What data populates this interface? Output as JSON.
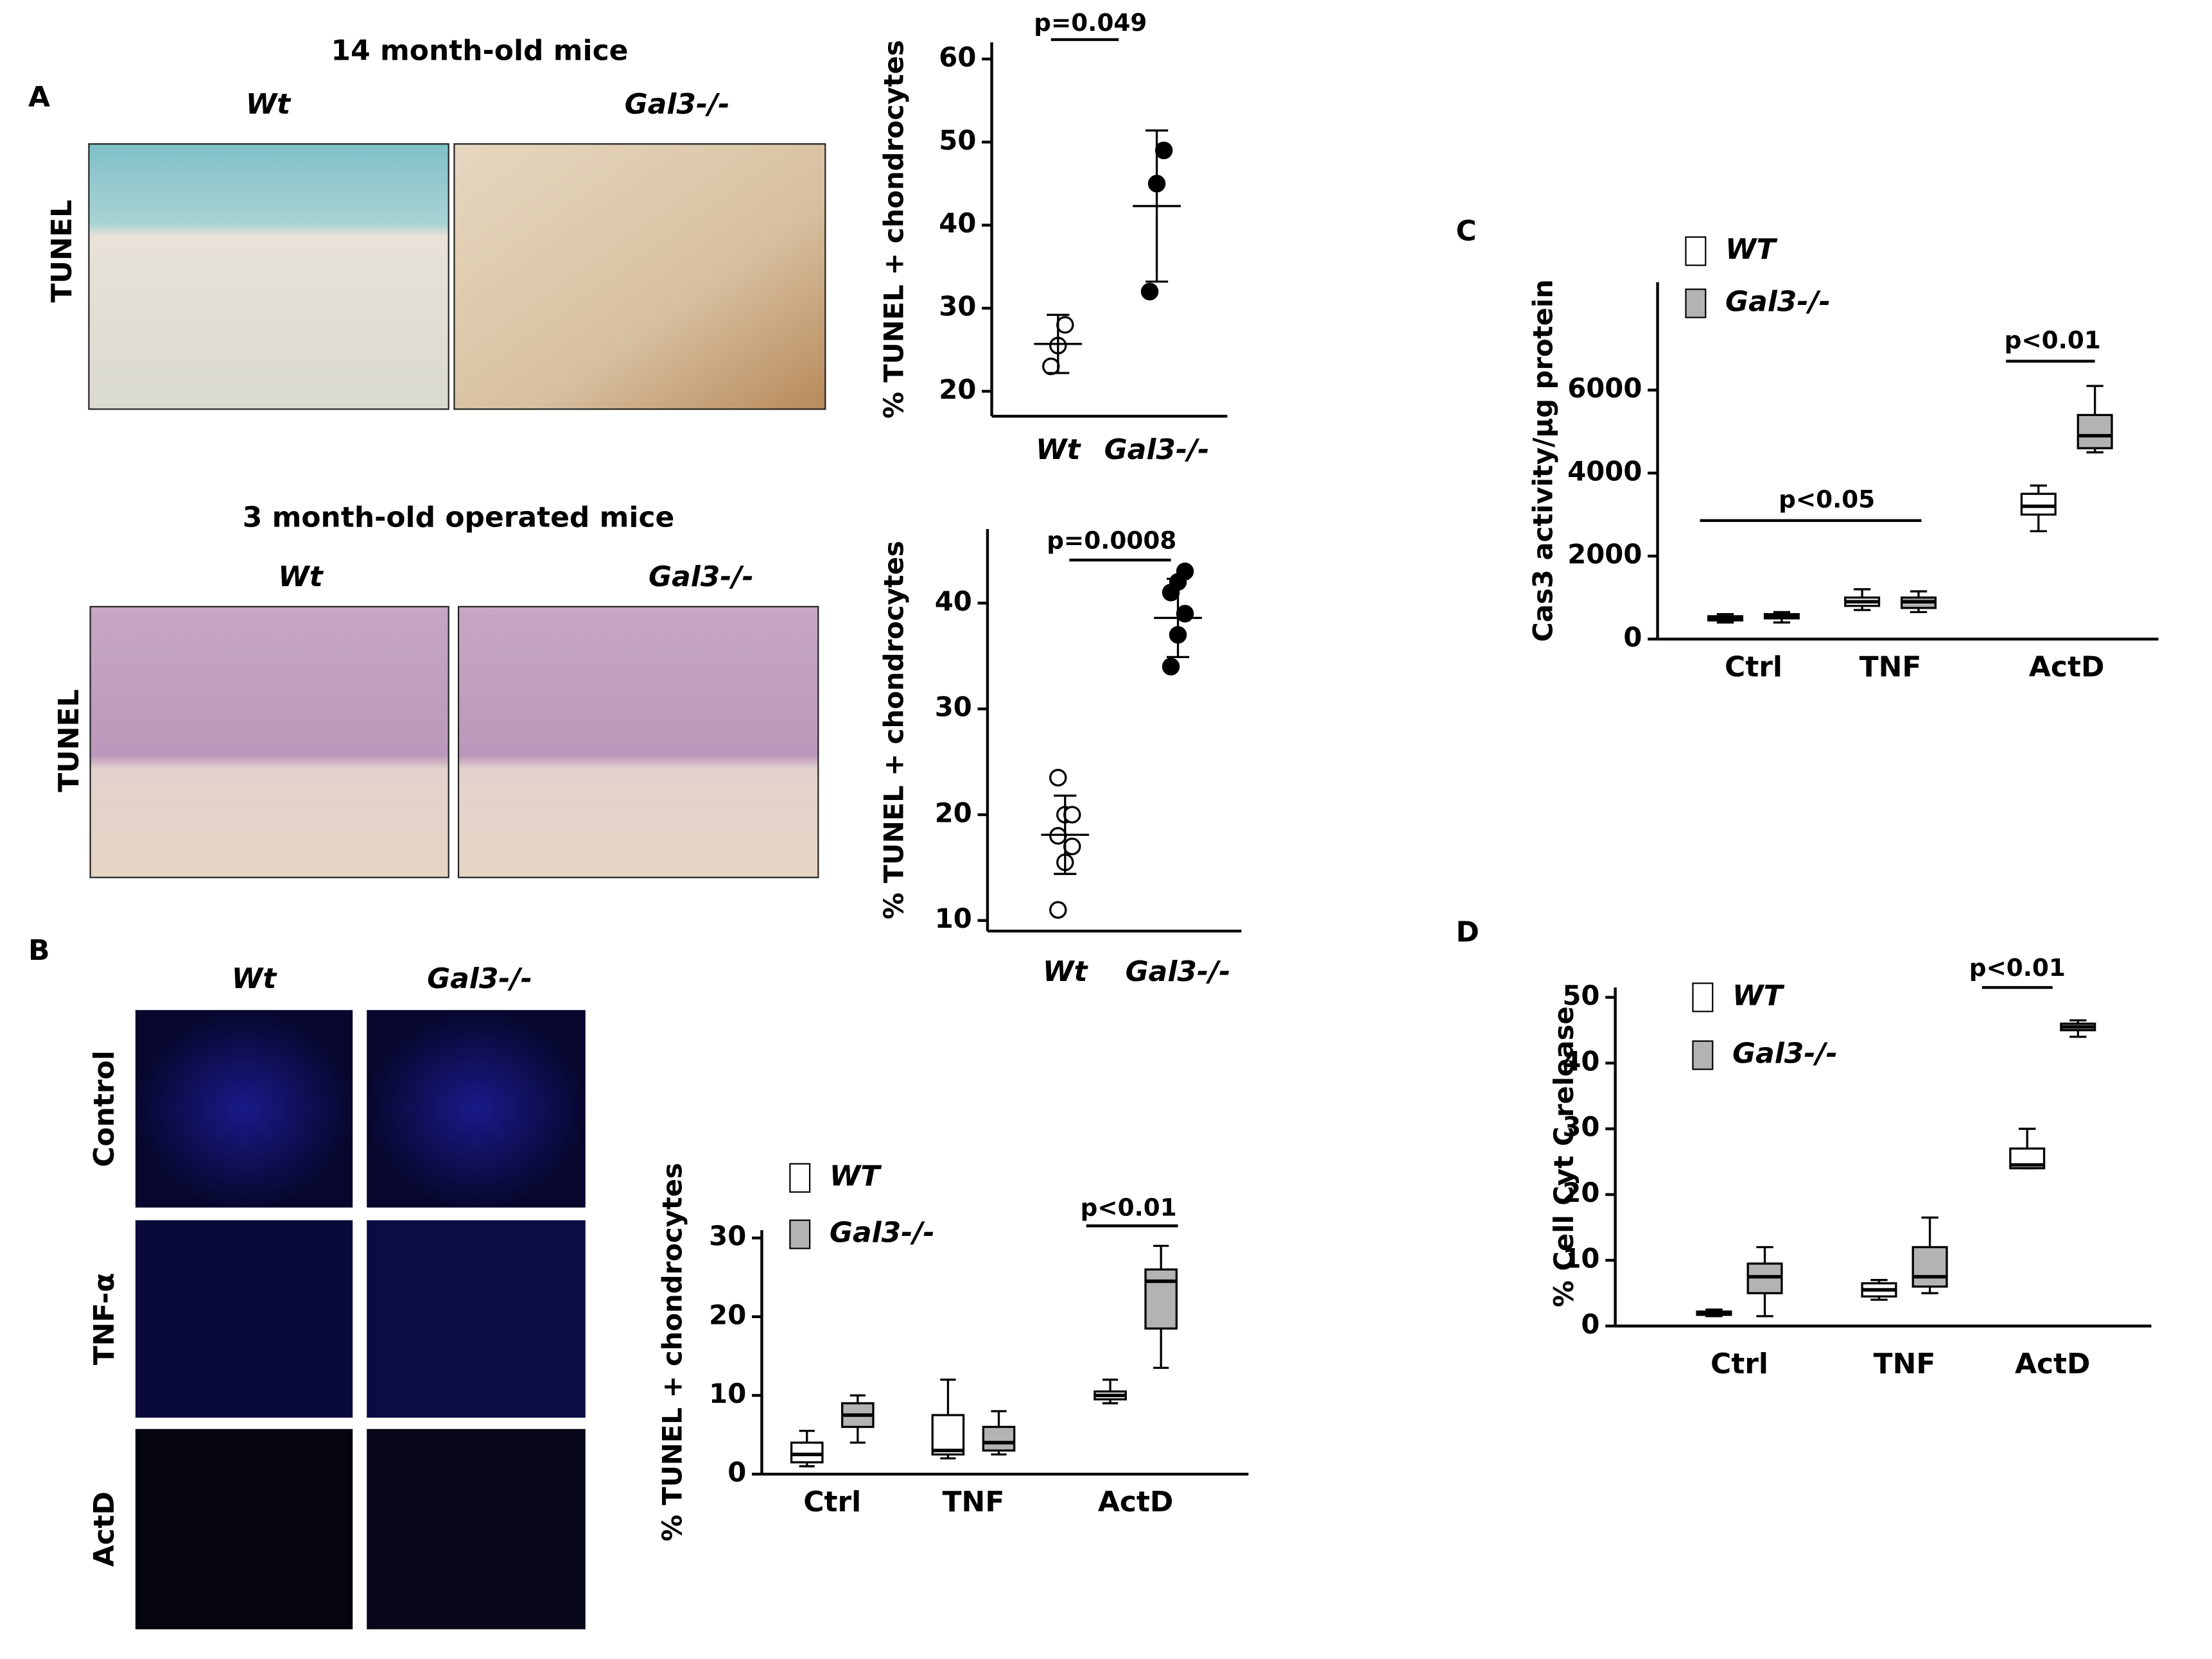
{
  "figure": {
    "panel_labels": [
      "A",
      "B",
      "C",
      "D"
    ],
    "image_panels": [
      {
        "title": "14 month-old mice",
        "columns": [
          "Wt",
          "Gal3-/-"
        ],
        "rows": [
          "TUNEL"
        ]
      },
      {
        "title": "3 month-old operated mice",
        "columns": [
          "Wt",
          "Gal3-/-"
        ],
        "rows": [
          "TUNEL"
        ]
      },
      {
        "columns": [
          "Wt",
          "Gal3-/-"
        ],
        "rows": [
          "Control",
          "TNF-α",
          "ActD"
        ]
      }
    ]
  },
  "chart_data": [
    {
      "type": "dot",
      "y_label": "% TUNEL + chondrocytes",
      "categories": [
        "Wt",
        "Gal3-/-"
      ],
      "points": [
        [
          23,
          25.5,
          28
        ],
        [
          32,
          45,
          49
        ]
      ],
      "means": [
        25.7,
        42.3
      ],
      "errors": [
        3.5,
        9.1
      ],
      "filled": [
        false,
        true
      ],
      "color": "#000000",
      "ylim": [
        17,
        62
      ],
      "yticks": [
        20,
        30,
        40,
        50,
        60
      ],
      "annotations": [
        {
          "text": "p=0.049"
        }
      ]
    },
    {
      "type": "dot",
      "y_label": "% TUNEL + chondrocytes",
      "categories": [
        "Wt",
        "Gal3-/-"
      ],
      "points": [
        [
          11,
          15.5,
          17,
          18,
          20,
          20,
          23.5
        ],
        [
          34,
          37,
          39,
          41,
          42,
          43
        ]
      ],
      "means": [
        18.1,
        38.6
      ],
      "errors": [
        3.7,
        3.7
      ],
      "filled": [
        false,
        true
      ],
      "color": "#000000",
      "ylim": [
        9,
        47
      ],
      "yticks": [
        10,
        20,
        30,
        40
      ],
      "annotations": [
        {
          "text": "p=0.0008"
        }
      ]
    },
    {
      "type": "box",
      "y_label": "% TUNEL + chondrocytes",
      "categories": [
        "Ctrl",
        "TNF",
        "ActD"
      ],
      "series": [
        {
          "name": "WT",
          "color": "#ffffff",
          "min": [
            1,
            2,
            9
          ],
          "q1": [
            1.5,
            2.5,
            9.5
          ],
          "median": [
            2.5,
            3,
            10
          ],
          "q3": [
            4,
            7.5,
            10.5
          ],
          "max": [
            5.5,
            12,
            12
          ]
        },
        {
          "name": "Gal3-/-",
          "color": "#b3b3b3",
          "min": [
            4,
            2.5,
            13.5
          ],
          "q1": [
            6,
            3,
            18.5
          ],
          "median": [
            7.5,
            4,
            24.5
          ],
          "q3": [
            9,
            6,
            26
          ],
          "max": [
            10,
            8,
            29
          ]
        }
      ],
      "ylim": [
        0,
        31
      ],
      "yticks": [
        0,
        10,
        20,
        30
      ],
      "annotations": [
        {
          "text": "p<0.01"
        }
      ]
    },
    {
      "type": "box",
      "y_label": "Cas3 activity/µg protein",
      "categories": [
        "Ctrl",
        "TNF",
        "ActD"
      ],
      "series": [
        {
          "name": "WT",
          "color": "#ffffff",
          "min": [
            400,
            700,
            2600
          ],
          "q1": [
            450,
            800,
            3000
          ],
          "median": [
            500,
            900,
            3200
          ],
          "q3": [
            550,
            1000,
            3500
          ],
          "max": [
            600,
            1200,
            3700
          ]
        },
        {
          "name": "Gal3-/-",
          "color": "#b3b3b3",
          "min": [
            400,
            650,
            4500
          ],
          "q1": [
            500,
            750,
            4600
          ],
          "median": [
            550,
            900,
            4900
          ],
          "q3": [
            600,
            1000,
            5400
          ],
          "max": [
            650,
            1150,
            6100
          ]
        }
      ],
      "ylim": [
        0,
        8600
      ],
      "yticks": [
        0,
        2000,
        4000,
        6000
      ],
      "annotations": [
        {
          "text": "p<0.05"
        },
        {
          "text": "p<0.01"
        }
      ]
    },
    {
      "type": "box",
      "y_label": "% Cell Cyt C release",
      "categories": [
        "Ctrl",
        "TNF",
        "ActD"
      ],
      "series": [
        {
          "name": "WT",
          "color": "#ffffff",
          "min": [
            1.5,
            4,
            24
          ],
          "q1": [
            1.7,
            4.5,
            24
          ],
          "median": [
            2,
            5.5,
            24.5
          ],
          "q3": [
            2.2,
            6.5,
            27
          ],
          "max": [
            2.5,
            7,
            30
          ]
        },
        {
          "name": "Gal3-/-",
          "color": "#b3b3b3",
          "min": [
            1.5,
            5,
            44
          ],
          "q1": [
            5,
            6,
            45
          ],
          "median": [
            7.5,
            7.5,
            45.5
          ],
          "q3": [
            9.5,
            12,
            46
          ],
          "max": [
            12,
            16.5,
            46.5
          ]
        }
      ],
      "ylim": [
        0,
        51.5
      ],
      "yticks": [
        0,
        10,
        20,
        30,
        40,
        50
      ],
      "annotations": [
        {
          "text": "p<0.01"
        }
      ]
    }
  ]
}
